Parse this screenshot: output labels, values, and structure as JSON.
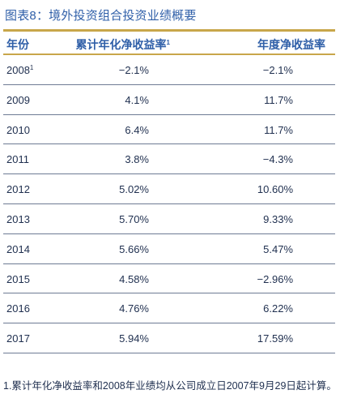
{
  "title": "图表8：境外投资组合投资业绩概要",
  "header": {
    "col1": "年份",
    "col2": "累计年化净收益率",
    "col2_sup": "1",
    "col3": "年度净收益率"
  },
  "rows": [
    {
      "year": "2008",
      "year_sup": "1",
      "cumulative": "−2.1%",
      "annual": "−2.1%"
    },
    {
      "year": "2009",
      "year_sup": "",
      "cumulative": "4.1%",
      "annual": "11.7%"
    },
    {
      "year": "2010",
      "year_sup": "",
      "cumulative": "6.4%",
      "annual": "11.7%"
    },
    {
      "year": "2011",
      "year_sup": "",
      "cumulative": "3.8%",
      "annual": "−4.3%"
    },
    {
      "year": "2012",
      "year_sup": "",
      "cumulative": "5.02%",
      "annual": "10.60%"
    },
    {
      "year": "2013",
      "year_sup": "",
      "cumulative": "5.70%",
      "annual": "9.33%"
    },
    {
      "year": "2014",
      "year_sup": "",
      "cumulative": "5.66%",
      "annual": "5.47%"
    },
    {
      "year": "2015",
      "year_sup": "",
      "cumulative": "4.58%",
      "annual": "−2.96%"
    },
    {
      "year": "2016",
      "year_sup": "",
      "cumulative": "4.76%",
      "annual": "6.22%"
    },
    {
      "year": "2017",
      "year_sup": "",
      "cumulative": "5.94%",
      "annual": "17.59%"
    }
  ],
  "footnote": "1.累计年化净收益率和2008年业绩均从公司成立日2007年9月29日起计算。",
  "colors": {
    "title": "#2f5fa8",
    "rule": "#c8a64a",
    "text": "#1f2f4f",
    "row_border": "#6e7b94"
  }
}
